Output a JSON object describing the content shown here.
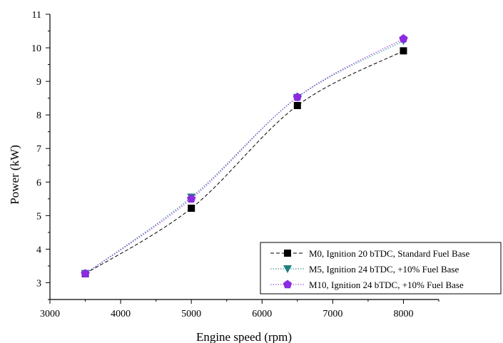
{
  "chart_data": {
    "type": "line",
    "title": "",
    "xlabel": "Engine speed (rpm)",
    "ylabel": "Power (kW)",
    "xlim": [
      3000,
      8500
    ],
    "ylim": [
      2.5,
      11
    ],
    "xticks": [
      3000,
      4000,
      5000,
      6000,
      7000,
      8000
    ],
    "yticks": [
      3,
      4,
      5,
      6,
      7,
      8,
      9,
      10,
      11
    ],
    "x": [
      3500,
      5000,
      6500,
      8000
    ],
    "grid": false,
    "legend_position": "bottom-right",
    "series": [
      {
        "name": "M0, Ignition 20 bTDC, Standard Fuel Base",
        "values": [
          3.27,
          5.22,
          8.28,
          9.91
        ],
        "color": "#000000",
        "marker": "square",
        "line_style": "dashed"
      },
      {
        "name": "M5, Ignition 24 bTDC, +10% Fuel Base",
        "values": [
          3.27,
          5.55,
          8.52,
          10.21
        ],
        "color": "#1f7f7f",
        "marker": "triangle-down",
        "line_style": "dotted"
      },
      {
        "name": "M10, Ignition 24 bTDC, +10% Fuel Base",
        "values": [
          3.27,
          5.5,
          8.53,
          10.27
        ],
        "color": "#8a2be2",
        "marker": "pentagon",
        "line_style": "dotted"
      }
    ]
  }
}
